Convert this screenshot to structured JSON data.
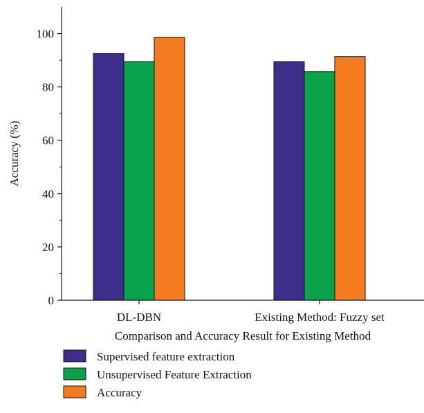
{
  "chart_data": {
    "type": "bar",
    "categories": [
      "DL-DBN",
      "Existing Method: Fuzzy set"
    ],
    "series": [
      {
        "name": "Supervised feature extraction",
        "values": [
          92.5,
          89.5
        ],
        "color": "#3f2d8c"
      },
      {
        "name": "Unsupervised Feature Extraction",
        "values": [
          89.5,
          85.7
        ],
        "color": "#0aa24b"
      },
      {
        "name": "Accuracy",
        "values": [
          98.5,
          91.4
        ],
        "color": "#f47b20"
      }
    ],
    "xlabel": "Comparison and Accuracy Result for Existing Method",
    "ylabel": "Accuracy (%)",
    "ylim": [
      0,
      110
    ],
    "yticks": [
      0,
      20,
      40,
      60,
      80,
      100
    ],
    "grid": false,
    "legend_position": "bottom"
  }
}
